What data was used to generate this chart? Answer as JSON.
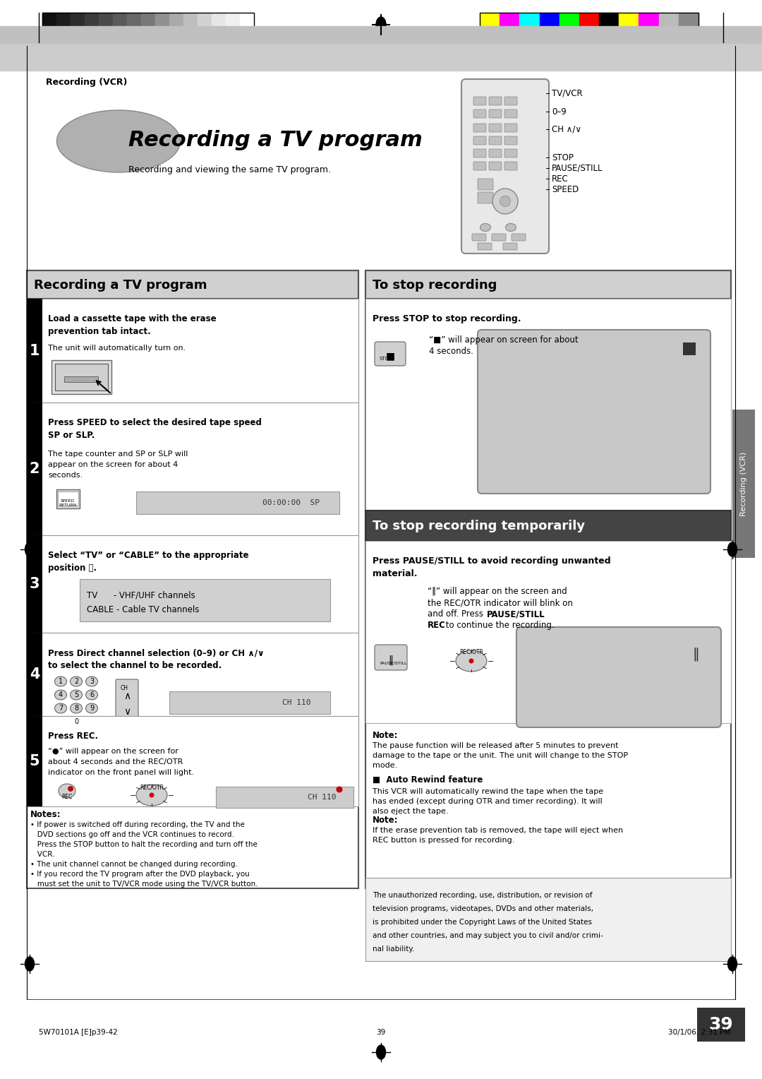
{
  "page_bg": "#ffffff",
  "header_bar_color": "#555555",
  "page_number": "39",
  "header_text": "Recording (VCR)",
  "title_italic": "Recording a TV program",
  "subtitle": "Recording and viewing the same TV program.",
  "remote_labels": [
    "TV/VCR",
    "0–9",
    "CH ∧/∨",
    "STOP",
    "PAUSE/STILL",
    "REC",
    "SPEED"
  ],
  "left_section_title": "Recording a TV program",
  "right_top_title": "To stop recording",
  "right_bottom_title": "To stop recording temporarily",
  "sidebar_text": "Recording (VCR)",
  "footer_left": "5W70101A [E]p39-42",
  "footer_center": "39",
  "footer_right": "30/1/06, 2:31 PM",
  "notes_title": "Notes:",
  "copyright_lines": [
    "The unauthorized recording, use, distribution, or revision of",
    "television programs, videotapes, DVDs and other materials,",
    "is prohibited under the Copyright Laws of the United States",
    "and other countries, and may subject you to civil and/or crimi-",
    "nal liability."
  ],
  "gs_colors": [
    "#111111",
    "#1e1e1e",
    "#2d2d2d",
    "#3c3c3c",
    "#4b4b4b",
    "#5a5a5a",
    "#696969",
    "#787878",
    "#919191",
    "#aaaaaa",
    "#bebebe",
    "#d2d2d2",
    "#e6e6e6",
    "#f0f0f0",
    "#ffffff"
  ],
  "color_bars": [
    "#ffff00",
    "#ff00ff",
    "#00ffff",
    "#0000ff",
    "#00ff00",
    "#ff0000",
    "#000000",
    "#ffff00",
    "#ff00ff",
    "#bbbbbb",
    "#888888"
  ]
}
